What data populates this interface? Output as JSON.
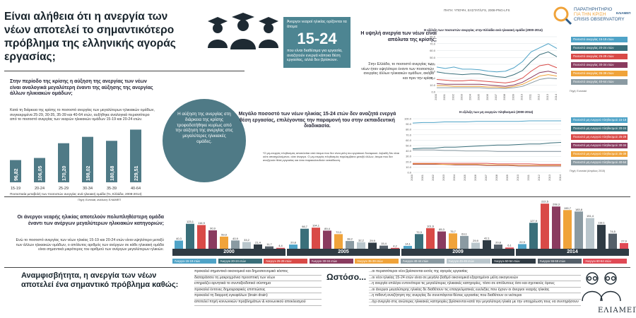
{
  "title": "Είναι αλήθεια ότι η ανεργία των νέων αποτελεί το σημαντικότερο πρόβλημα της ελληνικής αγοράς εργασίας;",
  "source_top": "ΠΗΓΗ: ΥΠΟΨΗ, ΕΛΣΤΑΤ/LFS, 2008-PNG-LFS",
  "logo": {
    "line1": "ΠΑΡΑΤΗΡΗΤΗΡΙΟ",
    "line2": "ΓΙΑ ΤΗΝ ΚΡΙΣΗ",
    "line3": "CRISIS OBSERVATORY",
    "side": "ΕΛΙΑΜΕΠ"
  },
  "teal_box": {
    "pre": "Άνεργοι νεαροί ηλικίας ορίζονται τα άτομα",
    "big": "15-24",
    "post": "που είναι διαθέσιμα για εργασία, αναζητούν ενεργά κάποια θέση εργασίας, αλλά δεν βρίσκουν."
  },
  "left_intro": {
    "heading": "Στην περίοδο της κρίσης η αύξηση της ανεργίας των νέων είναι αναλογικά μεγαλύτερη έναντι της αύξησης της ανεργίας άλλων ηλικιακών ομάδων;",
    "text": "Κατά τη διάρκεια της κρίσης το ποσοστό ανεργίας των μεγαλύτερων ηλικιακών ομάδων, συγκεκριμένα 25-29, 30-35, 35-39 και 40-64 ετών, αυξήθηκε αναλογικά περισσότερο από το ποσοστό ανεργίας των νεαρών ηλικιακών ομάδων 15-19 και 20-24 ετών."
  },
  "circle_text": "Η αύξηση της ανεργίας στη διάρκεια της κρίσης τροφοδοτήθηκε κυρίως από την αύξηση της ανεργίας στις μεγαλύτερες ηλικιακές ομάδες.",
  "growth_chart_caption": "Ποσοστιαία μεταβολή των ποσοστών ανεργίας ανά ηλικιακή ομάδα (%, Ελλάδα, 2008-2014)",
  "growth_chart_source": "Πηγή: Eurostat, ανάλυση: ΕΛΙΑΜΕΠ",
  "rate_section": {
    "heading": "Η υψηλή ανεργία των νέων είναι απόλυτα της κρίσης;",
    "text": "Στην Ελλάδα, το ποσοστό ανεργίας των νέων ήταν υψηλότερο έναντι των ποσοστών ανεργίας άλλων ηλικιακών ομάδων, ακόμα και πριν την κρίση.",
    "chart_title": "Η εξέλιξη των ποσοστών ανεργίας στην Ελλάδα ανά ηλικιακή ομάδα (2000-2014)",
    "source": "Πηγή: Eurostat"
  },
  "ltu_section": {
    "heading": "Μεγάλο ποσοστό των νέων ηλικίας 15-24 ετών δεν αναζητά ενεργά θέση εργασίας, επιλέγοντας την παραμονή του στην εκπαιδευτική διαδικασία.",
    "chart_title": "Η εξέλιξη των μη ενεργών πληθυσμού (2000-2014)",
    "note": "*Ο μη-ενεργός πληθυσμός αποτελείται από άτομα που δεν είναι μέλη του εργατικού δυναμικού. Δηλαδή δεν είναι ούτε απασχολούμενοι, ούτε άνεργοι. Ο μη-ενεργός πληθυσμός περιλαμβάνει μεταξύ άλλων, άτομα που δεν αναζητούν θέση εργασίας και όσοι παρακολουθούν εκπαίδευση.",
    "source": "Πηγή: Eurostat (Απρίλιος 2015)"
  },
  "bars_section": {
    "heading": "Οι άνεργοι νεαρής ηλικίας αποτελούν πολυπληθέστερη ομάδα έναντι των ανέργων μεγαλύτερων ηλικιακών κατηγοριών;",
    "text": "Ενώ το ποσοστό ανεργίας των νέων ηλικίας 15-19 και 20-24 ετών είναι υψηλότερο μεταξύ των άλλων ηλικιακών ομάδων, ο απόλυτος αριθμός των ανέργων σε κάθε ηλικιακή ομάδα είναι σημαντικά μικρότερος του αριθμού των ανέργων μεγαλύτερων ηλικιών."
  },
  "bottom_left_heading": "Αναμφισβήτητα, η ανεργία των νέων αποτελεί ένα σημαντικό πρόβλημα καθώς:",
  "bottom_left_items": [
    "προκαλεί σημαντικό οικονομικό και δημοσιονομικό κόστος",
    "διαταράσσει τη μακροχρόνια προοπτική των νέων",
    "επηρεάζει αρνητικά το συνταξιοδοτικό σύστημα",
    "προκαλεί έντονες δημογραφικές επιπτώσεις",
    "προκαλεί τη διαρροή εγκεφάλων (brain drain)",
    "αποτελεί πηγή κοινωνικών προβλημάτων & κοινωνικού αποκλεισμού"
  ],
  "bottom_right_heading": "Ωστόσο...",
  "bottom_right_items": [
    "...οι περισσότεροι νέοι βρίσκονται εκτός της αγοράς εργασίας",
    "...οι νέοι ηλικίας 15-24 ετών είναι σε μεγάλο βαθμό οικονομικά εξαρτημένοι μέλη οικογενειών",
    "...η ανεργία επιλέγει εντονότερα τις μεγαλύτερες ηλικιακές κατηγορίες, τόσο σε απόλυτους όσο και σχετικούς όρους",
    "...οι άνεργοι μεγαλύτερης ηλικίας δε διαθέτουν τις επαγγελματικές ευελιξίες που έχουν οι άνεργοι νεαρής ηλικίας",
    "...η πιθανή αναζήτηση της ανεργίας δε συνεπάγεται θέσεις εργασίας που διαθέτουν οι νεότεροι",
    "...όχι ανεργία στις ανώτερες ηλικιακές κατηγορίες βρίσκονται κατά την μεγαλύτερη ηλικία με την υποχρέωση τους να συντηρήσουν"
  ],
  "footer_logo": "ΕΛΙΑΜΕΠ",
  "chart_data": [
    {
      "type": "bar",
      "title": "",
      "categories": [
        "15-19",
        "20-24",
        "25-29",
        "30-34",
        "35-39",
        "40-64"
      ],
      "values": [
        96.82,
        106.05,
        170.2,
        198.02,
        180.68,
        229.51
      ],
      "value_labels": [
        "96,82",
        "106,05",
        "170,20",
        "198,02",
        "180,68",
        "229,51"
      ]
    },
    {
      "type": "line",
      "title": "Η εξέλιξη των ποσοστών ανεργίας στην Ελλάδα ανά ηλικιακή ομάδα (2000-2014)",
      "x": [
        "2000",
        "2001",
        "2002",
        "2003",
        "2004",
        "2005",
        "2006",
        "2007",
        "2008",
        "2009",
        "2010",
        "2011",
        "2012",
        "2013",
        "2014"
      ],
      "yticks": [
        0,
        10,
        20,
        30,
        40,
        50,
        60,
        70,
        80
      ],
      "ylim": [
        0,
        80
      ],
      "series": [
        {
          "name": "Ποσοστό ανεργίας 15-19 ετών",
          "color": "#4fa3c7",
          "values": [
            36,
            34,
            36,
            33,
            33,
            32,
            30,
            29,
            30,
            35,
            44,
            58,
            64,
            70,
            63
          ]
        },
        {
          "name": "Ποσοστό ανεργίας 20-24 ετών",
          "color": "#3a6f7a",
          "values": [
            29,
            27,
            26,
            25,
            26,
            26,
            24,
            22,
            21,
            25,
            31,
            44,
            54,
            58,
            51
          ]
        },
        {
          "name": "Ποσοστό ανεργίας 25-29 ετών",
          "color": "#d94a47",
          "values": [
            18,
            17,
            16,
            16,
            17,
            16,
            15,
            14,
            13,
            15,
            20,
            30,
            38,
            40,
            35
          ]
        },
        {
          "name": "Ποσοστό ανεργίας 30-34 ετών",
          "color": "#8a3b5f",
          "values": [
            12,
            11,
            11,
            11,
            11,
            11,
            10,
            9,
            8,
            10,
            14,
            21,
            28,
            30,
            27
          ]
        },
        {
          "name": "Ποσοστό ανεργίας 35-39 ετών",
          "color": "#f0a33a",
          "values": [
            9,
            9,
            8,
            8,
            8,
            8,
            7,
            7,
            6,
            8,
            11,
            17,
            23,
            25,
            23
          ]
        },
        {
          "name": "Ποσοστό ανεργίας 40-64 ετών",
          "color": "#8a9aa2",
          "values": [
            6,
            6,
            6,
            6,
            6,
            6,
            5,
            5,
            5,
            6,
            8,
            13,
            18,
            20,
            19
          ]
        }
      ]
    },
    {
      "type": "line",
      "title": "Η εξέλιξη των μη ενεργών πληθυσμού (2000-2014)",
      "x": [
        "2000",
        "2001",
        "2002",
        "2003",
        "2004",
        "2005",
        "2006",
        "2007",
        "2008",
        "2009",
        "2010",
        "2011",
        "2012",
        "2013",
        "2014"
      ],
      "yticks": [
        0,
        10,
        20,
        30,
        40,
        50,
        60,
        70,
        80,
        90,
        100
      ],
      "ylim": [
        0,
        100
      ],
      "series": [
        {
          "name": "Ποσοστό μη ενεργού πληθυσμού 15-19",
          "color": "#4fa3c7",
          "values": [
            92,
            93,
            93,
            94,
            94,
            94,
            95,
            95,
            95,
            95,
            95,
            96,
            96,
            96,
            96
          ]
        },
        {
          "name": "Ποσοστό μη ενεργού πληθυσμού 20-24",
          "color": "#3a6f7a",
          "values": [
            44,
            45,
            45,
            47,
            47,
            48,
            49,
            50,
            51,
            51,
            52,
            53,
            53,
            55,
            56
          ]
        },
        {
          "name": "Ποσοστό μη ενεργού πληθυσμού 25-29",
          "color": "#d94a47",
          "values": [
            17,
            17,
            17,
            17,
            17,
            17,
            17,
            17,
            16,
            16,
            16,
            16,
            15,
            15,
            15
          ]
        },
        {
          "name": "Ποσοστό μη ενεργού πληθυσμού 30-34",
          "color": "#8a3b5f",
          "values": [
            15,
            15,
            15,
            15,
            14,
            14,
            14,
            13,
            13,
            13,
            12,
            12,
            12,
            12,
            12
          ]
        },
        {
          "name": "Ποσοστό μη ενεργού πληθυσμού 35-39",
          "color": "#f0a33a",
          "values": [
            16,
            16,
            16,
            15,
            15,
            15,
            15,
            14,
            14,
            14,
            13,
            13,
            13,
            13,
            13
          ]
        },
        {
          "name": "Ποσοστό μη ενεργού πληθυσμού 40-64",
          "color": "#8a9aa2",
          "values": [
            42,
            42,
            42,
            41,
            41,
            40,
            40,
            40,
            39,
            39,
            39,
            39,
            39,
            39,
            39
          ]
        }
      ]
    },
    {
      "type": "bar",
      "title": "",
      "groups": [
        "2000",
        "2005",
        "2009",
        "2014"
      ],
      "series": [
        {
          "name": "Άνεργοι 15-19 ετών",
          "color": "#4fa3c7"
        },
        {
          "name": "Άνεργοι 20-24 ετών",
          "color": "#3a6f7a"
        },
        {
          "name": "Άνεργοι 25-29 ετών",
          "color": "#d94a47"
        },
        {
          "name": "Άνεργοι 30-34 ετών",
          "color": "#8a3b5f"
        },
        {
          "name": "Άνεργοι 35-39 ετών",
          "color": "#f0a33a"
        },
        {
          "name": "Άνεργοι 40-44 ετών",
          "color": "#8a9aa2"
        },
        {
          "name": "Άνεργοι 45-49 ετών",
          "color": "#b9c6cc"
        },
        {
          "name": "Άνεργοι 50-54 ετών",
          "color": "#2f3b44"
        },
        {
          "name": "Άνεργοι 55-59 ετών",
          "color": "#55606a"
        },
        {
          "name": "Άνεργοι 60-64 ετών",
          "color": "#e04a55"
        }
      ],
      "values": [
        [
          40.3,
          123.1,
          116.9,
          90.9,
          59.9,
          40.9,
          33.2,
          21.4,
          11.7,
          4.4
        ],
        [
          20.8,
          98.7,
          104.1,
          89.4,
          72.0,
          38.2,
          32.2,
          29.9,
          15.4,
          4.2
        ],
        [
          14.1,
          72.3,
          101.6,
          85.3,
          75.7,
          63.1,
          29.9,
          42.1,
          20.8,
          6.1
        ],
        [
          22.9,
          127.9,
          222.5,
          208.3,
          190.7,
          183.8,
          151.4,
          118.1,
          74.5,
          27.9
        ]
      ],
      "value_labels": [
        [
          "40,3",
          "123,1",
          "116,9",
          "90,9",
          "59,9",
          "40,9",
          "33,2",
          "21,4",
          "11,7",
          "4,4"
        ],
        [
          "20,8",
          "98,7",
          "104,1",
          "89,4",
          "72,0",
          "38,2",
          "32,2",
          "29,9",
          "15,4",
          "4,2"
        ],
        [
          "14,1",
          "72,3",
          "101,6",
          "85,3",
          "75,7",
          "63,1",
          "29,9",
          "42,1",
          "20,8",
          "6,1"
        ],
        [
          "22,9",
          "127,9",
          "222,5",
          "208,3",
          "190,7",
          "183,8",
          "151,4",
          "118,1",
          "74,5",
          "27,9"
        ]
      ]
    }
  ]
}
